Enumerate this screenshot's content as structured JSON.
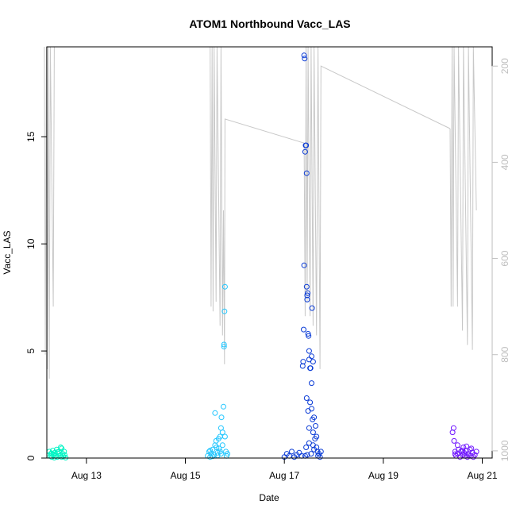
{
  "chart_data": {
    "type": "scatter",
    "title": "ATOM1 Northbound Vacc_LAS",
    "xlabel": "Date",
    "ylabel": "Vacc_LAS",
    "x_ticks": [
      "Aug 13",
      "Aug 15",
      "Aug 17",
      "Aug 19",
      "Aug 21"
    ],
    "x_tick_values": [
      13,
      15,
      17,
      19,
      21
    ],
    "y_ticks": [
      "0",
      "5",
      "10",
      "15"
    ],
    "y_tick_values": [
      0,
      5,
      10,
      15
    ],
    "y2_ticks": [
      "200",
      "400",
      "600",
      "800",
      "1000"
    ],
    "y2_tick_values": [
      200,
      400,
      600,
      800,
      1000
    ],
    "xlim": [
      12.2,
      21.2
    ],
    "ylim": [
      0,
      19.2
    ],
    "y2lim": [
      1015,
      160
    ],
    "y2_reversed": true,
    "grid": false,
    "legend": "none",
    "series": [
      {
        "color": "#00f5c4",
        "points": [
          [
            12.25,
            0.3
          ],
          [
            12.27,
            0.1
          ],
          [
            12.28,
            0.2
          ],
          [
            12.3,
            0.05
          ],
          [
            12.32,
            0.35
          ],
          [
            12.33,
            0.15
          ],
          [
            12.35,
            0.02
          ],
          [
            12.36,
            0.25
          ],
          [
            12.38,
            0.1
          ],
          [
            12.4,
            0.4
          ],
          [
            12.41,
            0.05
          ],
          [
            12.43,
            0.2
          ],
          [
            12.45,
            0.3
          ],
          [
            12.47,
            0.12
          ],
          [
            12.48,
            0.5
          ],
          [
            12.5,
            0.45
          ],
          [
            12.52,
            0.2
          ],
          [
            12.53,
            0.08
          ],
          [
            12.55,
            0.3
          ],
          [
            12.56,
            0.15
          ],
          [
            12.58,
            0.02
          ],
          [
            12.3,
            0.22
          ],
          [
            12.42,
            0.28
          ],
          [
            12.5,
            0.05
          ]
        ]
      },
      {
        "color": "#21c6ff",
        "points": [
          [
            15.45,
            0.1
          ],
          [
            15.48,
            0.3
          ],
          [
            15.5,
            0.05
          ],
          [
            15.52,
            0.2
          ],
          [
            15.55,
            0.4
          ],
          [
            15.58,
            0.15
          ],
          [
            15.6,
            2.1
          ],
          [
            15.62,
            0.8
          ],
          [
            15.63,
            0.5
          ],
          [
            15.65,
            0.25
          ],
          [
            15.67,
            0.9
          ],
          [
            15.7,
            1.0
          ],
          [
            15.72,
            1.4
          ],
          [
            15.73,
            1.9
          ],
          [
            15.75,
            1.2
          ],
          [
            15.75,
            0.6
          ],
          [
            15.77,
            2.4
          ],
          [
            15.78,
            5.3
          ],
          [
            15.78,
            5.2
          ],
          [
            15.79,
            6.85
          ],
          [
            15.8,
            8.0
          ],
          [
            15.8,
            1.0
          ],
          [
            15.82,
            0.3
          ],
          [
            15.83,
            0.1
          ],
          [
            15.85,
            0.2
          ],
          [
            15.5,
            0.35
          ],
          [
            15.55,
            0.08
          ],
          [
            15.65,
            0.12
          ],
          [
            15.7,
            0.3
          ],
          [
            15.6,
            0.6
          ],
          [
            15.68,
            0.45
          ],
          [
            15.72,
            0.2
          ]
        ]
      },
      {
        "color": "#0a3bd6",
        "points": [
          [
            17.0,
            0.05
          ],
          [
            17.05,
            0.2
          ],
          [
            17.1,
            0.1
          ],
          [
            17.15,
            0.3
          ],
          [
            17.2,
            0.05
          ],
          [
            17.25,
            0.15
          ],
          [
            17.3,
            0.25
          ],
          [
            17.35,
            0.1
          ],
          [
            17.37,
            4.3
          ],
          [
            17.38,
            4.5
          ],
          [
            17.39,
            6.0
          ],
          [
            17.4,
            9.0
          ],
          [
            17.4,
            18.8
          ],
          [
            17.41,
            18.65
          ],
          [
            17.42,
            14.3
          ],
          [
            17.43,
            14.6
          ],
          [
            17.44,
            14.6
          ],
          [
            17.45,
            13.3
          ],
          [
            17.45,
            8.0
          ],
          [
            17.46,
            7.6
          ],
          [
            17.46,
            7.4
          ],
          [
            17.47,
            7.7
          ],
          [
            17.48,
            5.8
          ],
          [
            17.49,
            5.7
          ],
          [
            17.5,
            5.0
          ],
          [
            17.5,
            4.6
          ],
          [
            17.52,
            4.2
          ],
          [
            17.53,
            4.2
          ],
          [
            17.55,
            4.75
          ],
          [
            17.55,
            3.5
          ],
          [
            17.56,
            7.0
          ],
          [
            17.58,
            4.5
          ],
          [
            17.45,
            2.8
          ],
          [
            17.48,
            2.2
          ],
          [
            17.5,
            1.4
          ],
          [
            17.52,
            2.6
          ],
          [
            17.55,
            2.3
          ],
          [
            17.57,
            1.8
          ],
          [
            17.58,
            1.2
          ],
          [
            17.6,
            1.9
          ],
          [
            17.62,
            0.9
          ],
          [
            17.63,
            1.5
          ],
          [
            17.65,
            1.0
          ],
          [
            17.65,
            0.5
          ],
          [
            17.67,
            0.3
          ],
          [
            17.68,
            0.1
          ],
          [
            17.7,
            0.2
          ],
          [
            17.72,
            0.05
          ],
          [
            17.74,
            0.3
          ],
          [
            17.42,
            0.1
          ],
          [
            17.44,
            0.5
          ],
          [
            17.46,
            0.15
          ],
          [
            17.5,
            0.7
          ],
          [
            17.54,
            0.2
          ],
          [
            17.58,
            0.6
          ],
          [
            17.6,
            0.4
          ]
        ]
      },
      {
        "color": "#7017ff",
        "points": [
          [
            20.4,
            1.2
          ],
          [
            20.42,
            1.4
          ],
          [
            20.43,
            0.8
          ],
          [
            20.45,
            0.3
          ],
          [
            20.47,
            0.1
          ],
          [
            20.5,
            0.2
          ],
          [
            20.52,
            0.4
          ],
          [
            20.55,
            0.05
          ],
          [
            20.57,
            0.3
          ],
          [
            20.6,
            0.15
          ],
          [
            20.62,
            0.5
          ],
          [
            20.63,
            0.25
          ],
          [
            20.65,
            0.1
          ],
          [
            20.67,
            0.35
          ],
          [
            20.7,
            0.05
          ],
          [
            20.72,
            0.2
          ],
          [
            20.75,
            0.4
          ],
          [
            20.77,
            0.1
          ],
          [
            20.8,
            0.25
          ],
          [
            20.82,
            0.05
          ],
          [
            20.85,
            0.15
          ],
          [
            20.88,
            0.3
          ],
          [
            20.5,
            0.6
          ],
          [
            20.6,
            0.35
          ],
          [
            20.68,
            0.55
          ],
          [
            20.73,
            0.12
          ],
          [
            20.78,
            0.45
          ],
          [
            20.45,
            0.18
          ]
        ]
      }
    ],
    "secondary_series": {
      "color": "#c8c8c8",
      "axis": "right",
      "segments": [
        [
          [
            12.15,
            160
          ],
          [
            12.17,
            800
          ],
          [
            12.19,
            160
          ],
          [
            12.21,
            830
          ],
          [
            12.23,
            160
          ],
          [
            12.25,
            850
          ],
          [
            12.27,
            160
          ],
          [
            12.33,
            700
          ],
          [
            12.35,
            160
          ]
        ],
        [
          [
            15.5,
            160
          ],
          [
            15.52,
            700
          ],
          [
            15.54,
            160
          ],
          [
            15.56,
            710
          ],
          [
            15.58,
            160
          ],
          [
            15.62,
            690
          ],
          [
            15.64,
            160
          ],
          [
            15.7,
            740
          ],
          [
            15.72,
            160
          ],
          [
            15.75,
            760
          ],
          [
            15.77,
            500
          ],
          [
            15.79,
            820
          ],
          [
            15.8,
            310
          ],
          [
            17.4,
            360
          ]
        ],
        [
          [
            17.4,
            360
          ],
          [
            17.42,
            720
          ],
          [
            17.44,
            160
          ],
          [
            17.46,
            690
          ],
          [
            17.48,
            160
          ],
          [
            17.52,
            720
          ],
          [
            17.54,
            160
          ],
          [
            17.58,
            740
          ],
          [
            17.6,
            160
          ],
          [
            17.65,
            760
          ],
          [
            17.68,
            160
          ],
          [
            17.72,
            830
          ],
          [
            17.74,
            200
          ],
          [
            20.35,
            330
          ]
        ],
        [
          [
            20.35,
            330
          ],
          [
            20.37,
            700
          ],
          [
            20.39,
            160
          ],
          [
            20.41,
            700
          ],
          [
            20.43,
            160
          ],
          [
            20.5,
            700
          ],
          [
            20.52,
            160
          ],
          [
            20.6,
            750
          ],
          [
            20.62,
            160
          ],
          [
            20.7,
            780
          ],
          [
            20.72,
            160
          ],
          [
            20.8,
            790
          ],
          [
            20.82,
            160
          ],
          [
            20.88,
            500
          ]
        ]
      ]
    }
  }
}
